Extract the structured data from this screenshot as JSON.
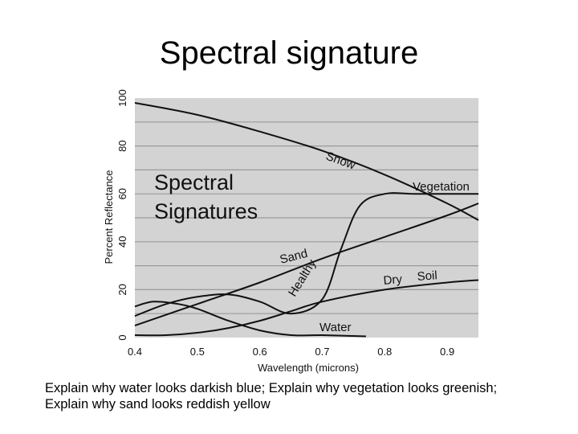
{
  "slide": {
    "title": "Spectral signature",
    "caption": "Explain why water looks darkish blue; Explain why vegetation looks greenish; Explain why sand looks reddish yellow"
  },
  "chart_data": {
    "type": "line",
    "title": "Spectral Signatures",
    "title_lines": [
      "Spectral",
      "Signatures"
    ],
    "xlabel": "Wavelength (microns)",
    "ylabel": "Percent Reflectance",
    "xlim": [
      0.4,
      0.95
    ],
    "ylim": [
      0,
      100
    ],
    "x_ticks": [
      "0.4",
      "0.5",
      "0.6",
      "0.7",
      "0.8",
      "0.9"
    ],
    "y_ticks": [
      "0",
      "20",
      "40",
      "60",
      "80",
      "100"
    ],
    "grid": true,
    "plot_background": "#d3d3d3",
    "line_color": "#111111",
    "series": [
      {
        "label_words": [
          "Snow"
        ],
        "points": [
          [
            0.4,
            98
          ],
          [
            0.5,
            93
          ],
          [
            0.6,
            86
          ],
          [
            0.7,
            78
          ],
          [
            0.8,
            68
          ],
          [
            0.9,
            56
          ],
          [
            0.95,
            49
          ]
        ]
      },
      {
        "label_words": [
          "Healthy",
          "Vegetation"
        ],
        "points": [
          [
            0.4,
            9
          ],
          [
            0.45,
            14
          ],
          [
            0.5,
            17
          ],
          [
            0.55,
            18
          ],
          [
            0.6,
            15
          ],
          [
            0.65,
            10
          ],
          [
            0.7,
            16
          ],
          [
            0.73,
            37
          ],
          [
            0.76,
            55
          ],
          [
            0.8,
            60
          ],
          [
            0.85,
            60
          ],
          [
            0.95,
            60
          ]
        ]
      },
      {
        "label_words": [
          "Sand"
        ],
        "points": [
          [
            0.4,
            5
          ],
          [
            0.5,
            14
          ],
          [
            0.6,
            23
          ],
          [
            0.7,
            33
          ],
          [
            0.8,
            42
          ],
          [
            0.9,
            51
          ],
          [
            0.95,
            56
          ]
        ]
      },
      {
        "label_words": [
          "Dry",
          "Soil"
        ],
        "points": [
          [
            0.4,
            1
          ],
          [
            0.45,
            1
          ],
          [
            0.5,
            2
          ],
          [
            0.55,
            4
          ],
          [
            0.6,
            7
          ],
          [
            0.65,
            11
          ],
          [
            0.7,
            15
          ],
          [
            0.8,
            20
          ],
          [
            0.9,
            23
          ],
          [
            0.95,
            24
          ]
        ]
      },
      {
        "label_words": [
          "Water"
        ],
        "points": [
          [
            0.4,
            13
          ],
          [
            0.43,
            15
          ],
          [
            0.47,
            14
          ],
          [
            0.5,
            12
          ],
          [
            0.55,
            7
          ],
          [
            0.6,
            3
          ],
          [
            0.65,
            1
          ],
          [
            0.7,
            1
          ],
          [
            0.77,
            0.5
          ]
        ]
      }
    ]
  }
}
